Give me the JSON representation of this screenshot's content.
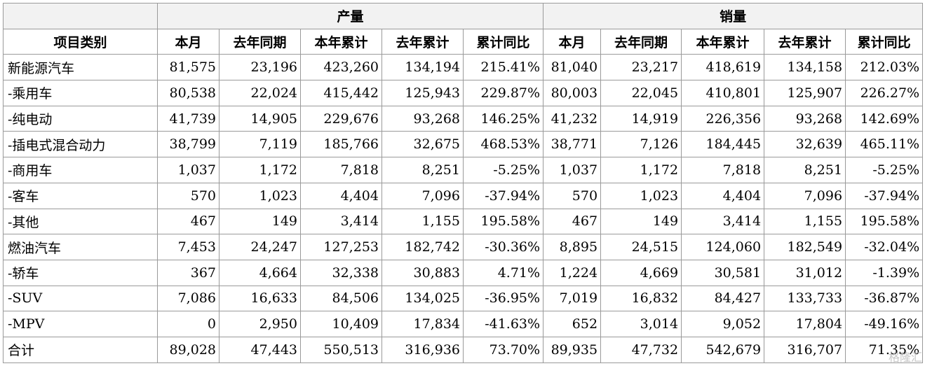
{
  "header": {
    "group_production": "产量",
    "group_sales": "销量",
    "category_col": "项目类别",
    "columns": [
      "本月",
      "去年同期",
      "本年累计",
      "去年累计",
      "累计同比"
    ]
  },
  "rows": [
    {
      "label": "新能源汽车",
      "prod": [
        "81,575",
        "23,196",
        "423,260",
        "134,194",
        "215.41%"
      ],
      "sales": [
        "81,040",
        "23,217",
        "418,619",
        "134,158",
        "212.03%"
      ]
    },
    {
      "label": "-乘用车",
      "prod": [
        "80,538",
        "22,024",
        "415,442",
        "125,943",
        "229.87%"
      ],
      "sales": [
        "80,003",
        "22,045",
        "410,801",
        "125,907",
        "226.27%"
      ]
    },
    {
      "label": "-纯电动",
      "prod": [
        "41,739",
        "14,905",
        "229,676",
        "93,268",
        "146.25%"
      ],
      "sales": [
        "41,232",
        "14,919",
        "226,356",
        "93,268",
        "142.69%"
      ]
    },
    {
      "label": "-插电式混合动力",
      "prod": [
        "38,799",
        "7,119",
        "185,766",
        "32,675",
        "468.53%"
      ],
      "sales": [
        "38,771",
        "7,126",
        "184,445",
        "32,639",
        "465.11%"
      ]
    },
    {
      "label": "-商用车",
      "prod": [
        "1,037",
        "1,172",
        "7,818",
        "8,251",
        "-5.25%"
      ],
      "sales": [
        "1,037",
        "1,172",
        "7,818",
        "8,251",
        "-5.25%"
      ]
    },
    {
      "label": "-客车",
      "prod": [
        "570",
        "1,023",
        "4,404",
        "7,096",
        "-37.94%"
      ],
      "sales": [
        "570",
        "1,023",
        "4,404",
        "7,096",
        "-37.94%"
      ]
    },
    {
      "label": "-其他",
      "prod": [
        "467",
        "149",
        "3,414",
        "1,155",
        "195.58%"
      ],
      "sales": [
        "467",
        "149",
        "3,414",
        "1,155",
        "195.58%"
      ]
    },
    {
      "label": "燃油汽车",
      "prod": [
        "7,453",
        "24,247",
        "127,253",
        "182,742",
        "-30.36%"
      ],
      "sales": [
        "8,895",
        "24,515",
        "124,060",
        "182,549",
        "-32.04%"
      ]
    },
    {
      "label": "-轿车",
      "prod": [
        "367",
        "4,664",
        "32,338",
        "30,883",
        "4.71%"
      ],
      "sales": [
        "1,224",
        "4,669",
        "30,581",
        "31,012",
        "-1.39%"
      ]
    },
    {
      "label": "-SUV",
      "prod": [
        "7,086",
        "16,633",
        "84,506",
        "134,025",
        "-36.95%"
      ],
      "sales": [
        "7,019",
        "16,832",
        "84,427",
        "133,733",
        "-36.87%"
      ]
    },
    {
      "label": "-MPV",
      "prod": [
        "0",
        "2,950",
        "10,409",
        "17,834",
        "-41.63%"
      ],
      "sales": [
        "652",
        "3,014",
        "9,052",
        "17,804",
        "-49.16%"
      ]
    },
    {
      "label": "合计",
      "prod": [
        "89,028",
        "47,443",
        "550,513",
        "316,936",
        "73.70%"
      ],
      "sales": [
        "89,935",
        "47,732",
        "542,679",
        "316,707",
        "71.35%"
      ]
    }
  ],
  "watermark": "格隆汇"
}
